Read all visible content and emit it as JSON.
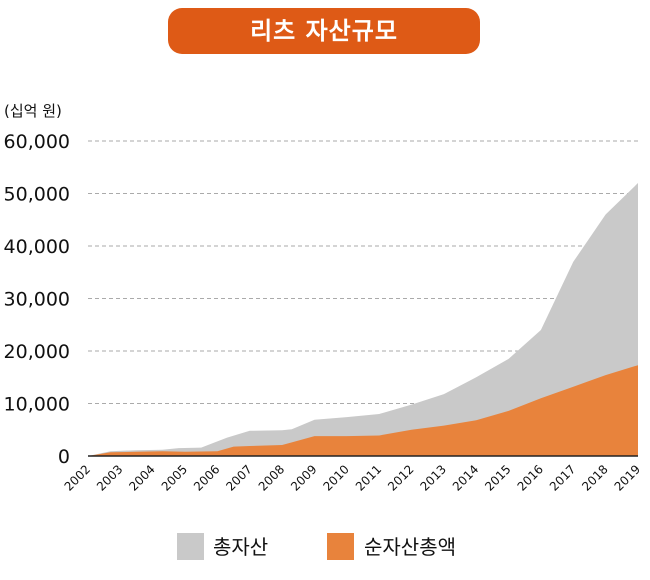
{
  "title": "리츠 자산규모",
  "chart_data": {
    "type": "area",
    "title": "리츠 자산규모",
    "ylabel": "(십억 원)",
    "xlabel": "",
    "ylim": [
      0,
      60000
    ],
    "yticks": [
      0,
      10000,
      20000,
      30000,
      40000,
      50000,
      60000
    ],
    "ytick_labels": [
      "0",
      "10,000",
      "20,000",
      "30,000",
      "40,000",
      "50,000",
      "60,000"
    ],
    "categories": [
      "2002",
      "2003",
      "2004",
      "2005",
      "2006",
      "2007",
      "2008",
      "2009",
      "2010",
      "2011",
      "2012",
      "2013",
      "2014",
      "2015",
      "2016",
      "2017",
      "2018",
      "2019"
    ],
    "grid": true,
    "legend_position": "bottom",
    "colors": {
      "total": "#c9c9c9",
      "net": "#e8833c",
      "title_bg": "#de5a16",
      "grid": "#aaaaaa"
    },
    "series": [
      {
        "name": "총자산",
        "color": "#c9c9c9",
        "points": [
          [
            2002.0,
            0
          ],
          [
            2002.7,
            900
          ],
          [
            2003.5,
            1100
          ],
          [
            2004.3,
            1200
          ],
          [
            2004.8,
            1500
          ],
          [
            2005.5,
            1600
          ],
          [
            2006.3,
            3500
          ],
          [
            2007.0,
            4800
          ],
          [
            2008.0,
            4900
          ],
          [
            2008.3,
            5100
          ],
          [
            2009.0,
            6900
          ],
          [
            2010.0,
            7400
          ],
          [
            2011.0,
            8000
          ],
          [
            2012.0,
            9800
          ],
          [
            2013.0,
            11800
          ],
          [
            2014.0,
            15000
          ],
          [
            2015.0,
            18500
          ],
          [
            2016.0,
            24000
          ],
          [
            2017.0,
            37000
          ],
          [
            2018.0,
            46000
          ],
          [
            2019.0,
            52000
          ]
        ]
      },
      {
        "name": "순자산총액",
        "color": "#e8833c",
        "points": [
          [
            2002.0,
            0
          ],
          [
            2002.7,
            700
          ],
          [
            2003.5,
            800
          ],
          [
            2004.3,
            900
          ],
          [
            2005.0,
            800
          ],
          [
            2006.0,
            900
          ],
          [
            2006.5,
            1800
          ],
          [
            2007.0,
            1900
          ],
          [
            2008.0,
            2100
          ],
          [
            2008.3,
            2600
          ],
          [
            2009.0,
            3800
          ],
          [
            2010.0,
            3800
          ],
          [
            2011.0,
            3900
          ],
          [
            2012.0,
            5000
          ],
          [
            2013.0,
            5800
          ],
          [
            2014.0,
            6800
          ],
          [
            2015.0,
            8600
          ],
          [
            2016.0,
            11000
          ],
          [
            2017.0,
            13200
          ],
          [
            2018.0,
            15400
          ],
          [
            2019.0,
            17300
          ]
        ]
      }
    ]
  }
}
